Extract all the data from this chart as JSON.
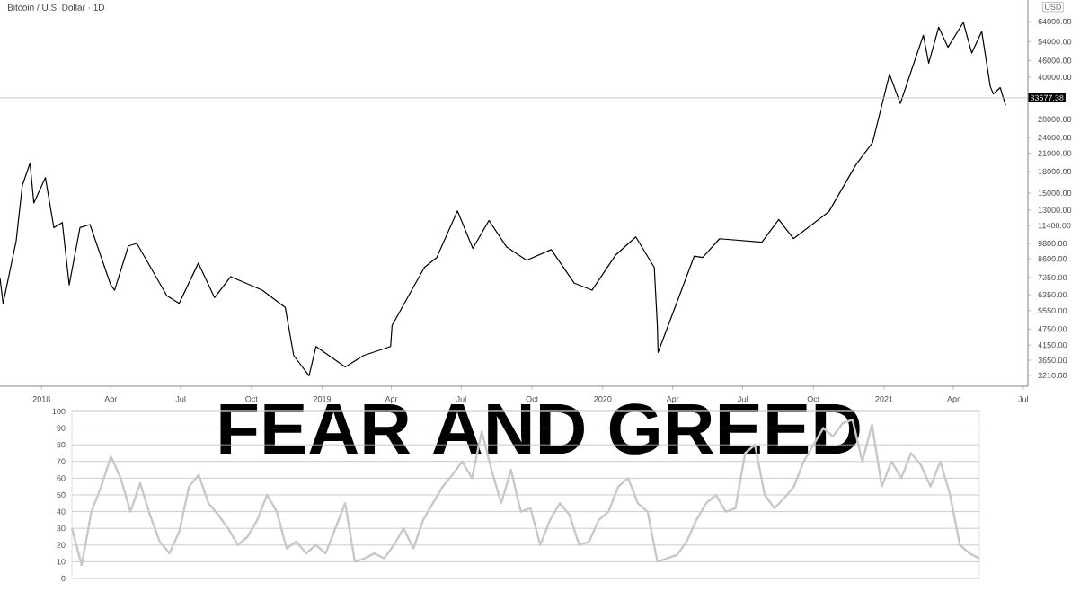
{
  "chart_data": [
    {
      "type": "line",
      "title": "Bitcoin / U.S. Dollar · 1D",
      "ylabel": "USD",
      "log": "y",
      "color": "#000000",
      "x": [
        "2017-11-08",
        "2017-11-12",
        "2017-11-29",
        "2017-12-07",
        "2017-12-17",
        "2017-12-22",
        "2018-01-06",
        "2018-01-17",
        "2018-01-28",
        "2018-02-06",
        "2018-02-20",
        "2018-03-05",
        "2018-04-01",
        "2018-04-06",
        "2018-04-24",
        "2018-05-05",
        "2018-06-13",
        "2018-06-29",
        "2018-07-24",
        "2018-08-14",
        "2018-09-04",
        "2018-10-15",
        "2018-11-14",
        "2018-11-25",
        "2018-12-15",
        "2018-12-24",
        "2019-01-31",
        "2019-02-24",
        "2019-03-31",
        "2019-04-02",
        "2019-05-14",
        "2019-05-30",
        "2019-06-26",
        "2019-07-16",
        "2019-08-06",
        "2019-08-29",
        "2019-09-24",
        "2019-10-26",
        "2019-11-25",
        "2019-12-18",
        "2020-01-18",
        "2020-02-13",
        "2020-03-08",
        "2020-03-12",
        "2020-03-13",
        "2020-04-29",
        "2020-05-10",
        "2020-06-01",
        "2020-07-26",
        "2020-08-17",
        "2020-09-05",
        "2020-10-21",
        "2020-11-25",
        "2020-12-17",
        "2021-01-08",
        "2021-01-22",
        "2021-02-21",
        "2021-02-28",
        "2021-03-13",
        "2021-03-25",
        "2021-04-14",
        "2021-04-25",
        "2021-05-08",
        "2021-05-19",
        "2021-05-23",
        "2021-06-01",
        "2021-06-08"
      ],
      "values": [
        7300,
        5900,
        10000,
        16000,
        19300,
        13800,
        17100,
        11200,
        11700,
        6900,
        11200,
        11500,
        6900,
        6600,
        9600,
        9800,
        6300,
        5900,
        8300,
        6200,
        7400,
        6600,
        5700,
        3800,
        3200,
        4100,
        3450,
        3800,
        4100,
        4900,
        8000,
        8700,
        12900,
        9400,
        11900,
        9500,
        8500,
        9300,
        7000,
        6600,
        8900,
        10350,
        8000,
        4900,
        3900,
        8800,
        8700,
        10200,
        9900,
        12000,
        10200,
        12800,
        19000,
        23000,
        41000,
        32000,
        57000,
        45000,
        61000,
        51500,
        63500,
        49000,
        58800,
        37000,
        34700,
        36600,
        31500
      ],
      "xlim": [
        "2017-11-08",
        "2021-07-07"
      ],
      "ylim": [
        2930,
        76800
      ],
      "xticks": [
        {
          "value": "2018-01-01",
          "label": "2018"
        },
        {
          "value": "2018-04-01",
          "label": "Apr"
        },
        {
          "value": "2018-07-01",
          "label": "Jul"
        },
        {
          "value": "2018-10-01",
          "label": "Oct"
        },
        {
          "value": "2019-01-01",
          "label": "2019"
        },
        {
          "value": "2019-04-01",
          "label": "Apr"
        },
        {
          "value": "2019-07-01",
          "label": "Jul"
        },
        {
          "value": "2019-10-01",
          "label": "Oct"
        },
        {
          "value": "2020-01-01",
          "label": "2020"
        },
        {
          "value": "2020-04-01",
          "label": "Apr"
        },
        {
          "value": "2020-07-01",
          "label": "Jul"
        },
        {
          "value": "2020-10-01",
          "label": "Oct"
        },
        {
          "value": "2021-01-01",
          "label": "2021"
        },
        {
          "value": "2021-04-01",
          "label": "Apr"
        },
        {
          "value": "2021-07-01",
          "label": "Jul"
        }
      ],
      "yticks": [
        {
          "value": 3210,
          "label": "3210.00"
        },
        {
          "value": 3650,
          "label": "3650.00"
        },
        {
          "value": 4150,
          "label": "4150.00"
        },
        {
          "value": 4750,
          "label": "4750.00"
        },
        {
          "value": 5550,
          "label": "5550.00"
        },
        {
          "value": 6350,
          "label": "6350.00"
        },
        {
          "value": 7350,
          "label": "7350.00"
        },
        {
          "value": 8600,
          "label": "8600.00"
        },
        {
          "value": 9800,
          "label": "9800.00"
        },
        {
          "value": 11400,
          "label": "11400.00"
        },
        {
          "value": 13000,
          "label": "13000.00"
        },
        {
          "value": 15000,
          "label": "15000.00"
        },
        {
          "value": 18000,
          "label": "18000.00"
        },
        {
          "value": 21000,
          "label": "21000.00"
        },
        {
          "value": 24000,
          "label": "24000.00"
        },
        {
          "value": 28000,
          "label": "28000.00"
        },
        {
          "value": 40000,
          "label": "40000.00"
        },
        {
          "value": 46000,
          "label": "46000.00"
        },
        {
          "value": 54000,
          "label": "54000.00"
        },
        {
          "value": 64000,
          "label": "64000.00"
        }
      ],
      "ref_lines": [
        {
          "axis": "y",
          "value": 33577.38,
          "label": "33577.38",
          "color": "#c8c8c8"
        }
      ]
    },
    {
      "type": "line",
      "annotations": [
        "FEAR AND GREED"
      ],
      "color": "#c8c8c8",
      "grid": "y",
      "categories": [
        null,
        null,
        null,
        null,
        null,
        null,
        null,
        null,
        null,
        null,
        null,
        null,
        null,
        null,
        null,
        null,
        null,
        null,
        null,
        null,
        null,
        null,
        null,
        null,
        null,
        null,
        null,
        null,
        null,
        null,
        null,
        null,
        null,
        null,
        null,
        null,
        null,
        null,
        null,
        null,
        null,
        null,
        null,
        null,
        null,
        null,
        null,
        null,
        null,
        null,
        null,
        null,
        null,
        null,
        null,
        null,
        null,
        null,
        null,
        null,
        null,
        null,
        null,
        null,
        null,
        null,
        null,
        null,
        null,
        null,
        null,
        null,
        null,
        null,
        null,
        null,
        null,
        null,
        null,
        null,
        null,
        null,
        null,
        null,
        null,
        null,
        null,
        null,
        null,
        null,
        null,
        null,
        null,
        null
      ],
      "values": [
        30,
        8,
        40,
        55,
        73,
        60,
        40,
        57,
        38,
        22,
        15,
        28,
        55,
        62,
        45,
        38,
        30,
        20,
        25,
        35,
        50,
        40,
        18,
        22,
        15,
        20,
        15,
        30,
        45,
        10,
        12,
        15,
        12,
        20,
        30,
        18,
        35,
        45,
        55,
        62,
        70,
        60,
        88,
        65,
        45,
        65,
        40,
        42,
        20,
        35,
        45,
        38,
        20,
        22,
        35,
        40,
        55,
        60,
        45,
        40,
        10,
        12,
        14,
        22,
        35,
        45,
        50,
        40,
        42,
        75,
        80,
        50,
        42,
        48,
        55,
        70,
        80,
        90,
        85,
        93,
        95,
        70,
        92,
        55,
        70,
        60,
        75,
        68,
        55,
        70,
        50,
        20,
        15,
        12
      ],
      "ylim": [
        0,
        100
      ],
      "yticks": [
        0,
        10,
        20,
        30,
        40,
        50,
        60,
        70,
        80,
        90,
        100
      ]
    }
  ]
}
